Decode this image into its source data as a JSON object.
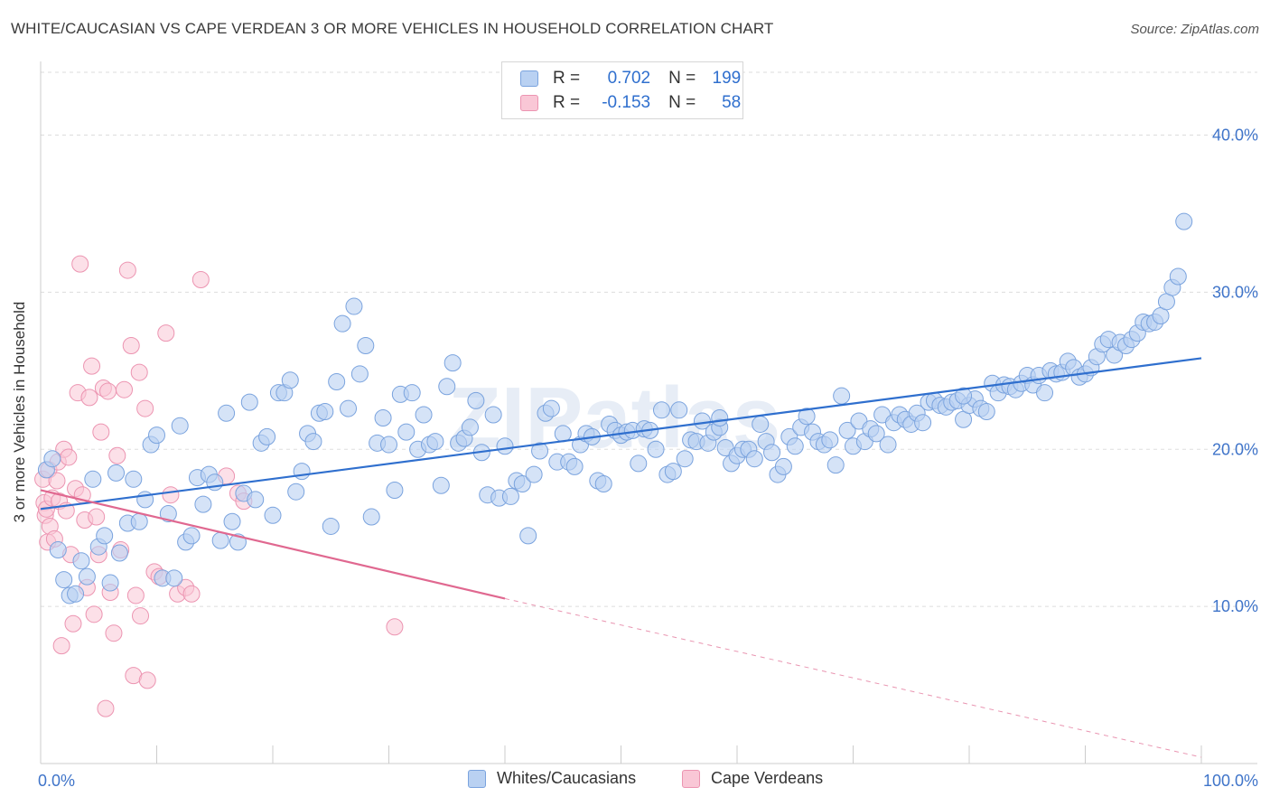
{
  "header": {
    "title": "WHITE/CAUCASIAN VS CAPE VERDEAN 3 OR MORE VEHICLES IN HOUSEHOLD CORRELATION CHART",
    "source": "Source: ZipAtlas.com"
  },
  "legend": {
    "rows": [
      {
        "r_label": "R =",
        "r_value": "0.702",
        "n_label": "N =",
        "n_value": "199"
      },
      {
        "r_label": "R =",
        "r_value": "-0.153",
        "n_label": "N =",
        "n_value": "58"
      }
    ]
  },
  "watermark": "ZIPatlas",
  "colors": {
    "blue_fill": "#b9d1f2",
    "blue_stroke": "#7aa3de",
    "blue_line": "#2f6fce",
    "pink_fill": "#f9c7d6",
    "pink_stroke": "#ec94b1",
    "pink_line": "#e06890",
    "tick_text": "#3f74c9",
    "grid": "#dddddd"
  },
  "chart_data": {
    "type": "scatter",
    "title": "WHITE/CAUCASIAN VS CAPE VERDEAN 3 OR MORE VEHICLES IN HOUSEHOLD CORRELATION CHART",
    "xlabel": "",
    "ylabel": "3 or more Vehicles in Household",
    "xlim": [
      0,
      100
    ],
    "ylim": [
      0,
      44
    ],
    "x_tick_labels": [
      "0.0%",
      "100.0%"
    ],
    "y_ticks": [
      10,
      20,
      30,
      40
    ],
    "y_tick_labels": [
      "10.0%",
      "20.0%",
      "30.0%",
      "40.0%"
    ],
    "grid": true,
    "legend_position": "top-center",
    "series": [
      {
        "name": "Whites/Caucasians",
        "color": "#b9d1f2",
        "r": 0.702,
        "n": 199,
        "trend": {
          "x": [
            0,
            100
          ],
          "y": [
            16.2,
            25.8
          ]
        },
        "points": [
          [
            0.5,
            18.7
          ],
          [
            1,
            19.4
          ],
          [
            1.5,
            13.6
          ],
          [
            2,
            11.7
          ],
          [
            2.5,
            10.7
          ],
          [
            3,
            10.8
          ],
          [
            3.5,
            12.9
          ],
          [
            4,
            11.9
          ],
          [
            4.5,
            18.1
          ],
          [
            5,
            13.8
          ],
          [
            5.5,
            14.5
          ],
          [
            6,
            11.5
          ],
          [
            6.5,
            18.5
          ],
          [
            6.8,
            13.4
          ],
          [
            7.5,
            15.3
          ],
          [
            8,
            18.1
          ],
          [
            8.5,
            15.4
          ],
          [
            9,
            16.8
          ],
          [
            9.5,
            20.3
          ],
          [
            10,
            20.9
          ],
          [
            10.5,
            11.8
          ],
          [
            11,
            15.9
          ],
          [
            11.5,
            11.8
          ],
          [
            12,
            21.5
          ],
          [
            12.5,
            14.1
          ],
          [
            13,
            14.5
          ],
          [
            13.5,
            18.2
          ],
          [
            14,
            16.5
          ],
          [
            14.5,
            18.4
          ],
          [
            15,
            17.9
          ],
          [
            15.5,
            14.2
          ],
          [
            16,
            22.3
          ],
          [
            16.5,
            15.4
          ],
          [
            17,
            14.1
          ],
          [
            17.5,
            17.2
          ],
          [
            18,
            23.0
          ],
          [
            18.5,
            16.8
          ],
          [
            19,
            20.4
          ],
          [
            19.5,
            20.8
          ],
          [
            20,
            15.8
          ],
          [
            20.5,
            23.6
          ],
          [
            21,
            23.6
          ],
          [
            21.5,
            24.4
          ],
          [
            22,
            17.3
          ],
          [
            22.5,
            18.6
          ],
          [
            23,
            21.0
          ],
          [
            23.5,
            20.5
          ],
          [
            24,
            22.3
          ],
          [
            24.5,
            22.4
          ],
          [
            25,
            15.1
          ],
          [
            25.5,
            24.3
          ],
          [
            26,
            28.0
          ],
          [
            26.5,
            22.6
          ],
          [
            27,
            29.1
          ],
          [
            27.5,
            24.8
          ],
          [
            28,
            26.6
          ],
          [
            28.5,
            15.7
          ],
          [
            29,
            20.4
          ],
          [
            29.5,
            22.0
          ],
          [
            30,
            20.3
          ],
          [
            30.5,
            17.4
          ],
          [
            31,
            23.5
          ],
          [
            31.5,
            21.1
          ],
          [
            32,
            23.6
          ],
          [
            32.5,
            20.0
          ],
          [
            33,
            22.2
          ],
          [
            33.5,
            20.3
          ],
          [
            34,
            20.5
          ],
          [
            34.5,
            17.7
          ],
          [
            35,
            24.0
          ],
          [
            35.5,
            25.5
          ],
          [
            36,
            20.4
          ],
          [
            36.5,
            20.7
          ],
          [
            37,
            21.4
          ],
          [
            37.5,
            23.1
          ],
          [
            38,
            19.8
          ],
          [
            38.5,
            17.1
          ],
          [
            39,
            22.2
          ],
          [
            39.5,
            16.9
          ],
          [
            40,
            20.2
          ],
          [
            40.5,
            17.0
          ],
          [
            41,
            18.0
          ],
          [
            41.5,
            17.8
          ],
          [
            42,
            14.5
          ],
          [
            42.5,
            18.4
          ],
          [
            43,
            19.9
          ],
          [
            43.5,
            22.3
          ],
          [
            44,
            22.6
          ],
          [
            44.5,
            19.2
          ],
          [
            45,
            21.0
          ],
          [
            45.5,
            19.2
          ],
          [
            46,
            18.9
          ],
          [
            46.5,
            20.3
          ],
          [
            47,
            21.0
          ],
          [
            47.5,
            20.8
          ],
          [
            48,
            18.0
          ],
          [
            48.5,
            17.8
          ],
          [
            49,
            21.6
          ],
          [
            49.5,
            21.2
          ],
          [
            50,
            20.9
          ],
          [
            50.5,
            21.1
          ],
          [
            51,
            21.2
          ],
          [
            51.5,
            19.1
          ],
          [
            52,
            21.3
          ],
          [
            52.5,
            21.2
          ],
          [
            53,
            20.0
          ],
          [
            53.5,
            22.5
          ],
          [
            54,
            18.4
          ],
          [
            54.5,
            18.6
          ],
          [
            55,
            22.5
          ],
          [
            55.5,
            19.4
          ],
          [
            56,
            20.6
          ],
          [
            56.5,
            20.5
          ],
          [
            57,
            21.8
          ],
          [
            57.5,
            20.4
          ],
          [
            58,
            21.1
          ],
          [
            58.5,
            21.4
          ],
          [
            59,
            20.1
          ],
          [
            59.5,
            19.1
          ],
          [
            60,
            19.6
          ],
          [
            60.5,
            20.0
          ],
          [
            61,
            20.0
          ],
          [
            61.5,
            19.4
          ],
          [
            62,
            21.6
          ],
          [
            62.5,
            20.5
          ],
          [
            63,
            19.8
          ],
          [
            63.5,
            18.4
          ],
          [
            64,
            18.9
          ],
          [
            64.5,
            20.8
          ],
          [
            65,
            20.2
          ],
          [
            65.5,
            21.4
          ],
          [
            66,
            22.1
          ],
          [
            66.5,
            21.1
          ],
          [
            67,
            20.5
          ],
          [
            67.5,
            20.3
          ],
          [
            68,
            20.6
          ],
          [
            68.5,
            19.0
          ],
          [
            69,
            23.4
          ],
          [
            69.5,
            21.2
          ],
          [
            70,
            20.2
          ],
          [
            70.5,
            21.8
          ],
          [
            71,
            20.5
          ],
          [
            71.5,
            21.3
          ],
          [
            72,
            21.0
          ],
          [
            72.5,
            22.2
          ],
          [
            73,
            20.3
          ],
          [
            73.5,
            21.7
          ],
          [
            74,
            22.2
          ],
          [
            74.5,
            21.9
          ],
          [
            75,
            21.6
          ],
          [
            75.5,
            22.3
          ],
          [
            76,
            21.7
          ],
          [
            76.5,
            23.0
          ],
          [
            77,
            23.1
          ],
          [
            77.5,
            22.8
          ],
          [
            78,
            22.7
          ],
          [
            78.5,
            23.0
          ],
          [
            79,
            23.1
          ],
          [
            79.5,
            21.9
          ],
          [
            80,
            22.8
          ],
          [
            80.5,
            23.2
          ],
          [
            81,
            22.6
          ],
          [
            81.5,
            22.4
          ],
          [
            82,
            24.2
          ],
          [
            82.5,
            23.6
          ],
          [
            83,
            24.1
          ],
          [
            83.5,
            24.0
          ],
          [
            84,
            23.8
          ],
          [
            84.5,
            24.2
          ],
          [
            85,
            24.7
          ],
          [
            85.5,
            24.1
          ],
          [
            86,
            24.7
          ],
          [
            86.5,
            23.6
          ],
          [
            87,
            25.0
          ],
          [
            87.5,
            24.8
          ],
          [
            88,
            24.9
          ],
          [
            88.5,
            25.6
          ],
          [
            89,
            25.2
          ],
          [
            89.5,
            24.6
          ],
          [
            90,
            24.8
          ],
          [
            90.5,
            25.2
          ],
          [
            91,
            25.9
          ],
          [
            91.5,
            26.7
          ],
          [
            92,
            27.0
          ],
          [
            92.5,
            26.0
          ],
          [
            93,
            26.8
          ],
          [
            93.5,
            26.6
          ],
          [
            94,
            27.0
          ],
          [
            94.5,
            27.4
          ],
          [
            95,
            28.1
          ],
          [
            95.5,
            28.0
          ],
          [
            96,
            28.1
          ],
          [
            96.5,
            28.5
          ],
          [
            97,
            29.4
          ],
          [
            97.5,
            30.3
          ],
          [
            98,
            31.0
          ],
          [
            98.5,
            34.5
          ],
          [
            79.5,
            23.4
          ],
          [
            58.5,
            22.0
          ]
        ]
      },
      {
        "name": "Cape Verdeans",
        "color": "#f9c7d6",
        "r": -0.153,
        "n": 58,
        "trend": {
          "x": [
            0,
            40
          ],
          "y": [
            17.4,
            10.5
          ]
        },
        "trend_dashed_extension": {
          "x": [
            40,
            100
          ],
          "y": [
            10.5,
            0.4
          ]
        },
        "points": [
          [
            0.2,
            18.1
          ],
          [
            0.3,
            16.6
          ],
          [
            0.4,
            15.8
          ],
          [
            0.5,
            16.2
          ],
          [
            0.6,
            14.1
          ],
          [
            0.7,
            18.7
          ],
          [
            0.8,
            15.1
          ],
          [
            1,
            16.9
          ],
          [
            1.2,
            14.3
          ],
          [
            1.4,
            18.0
          ],
          [
            1.5,
            19.2
          ],
          [
            1.6,
            16.7
          ],
          [
            1.8,
            7.5
          ],
          [
            2,
            20.0
          ],
          [
            2.2,
            16.1
          ],
          [
            2.4,
            19.5
          ],
          [
            2.6,
            13.3
          ],
          [
            2.8,
            8.9
          ],
          [
            3,
            17.5
          ],
          [
            3.2,
            23.6
          ],
          [
            3.4,
            31.8
          ],
          [
            3.6,
            17.1
          ],
          [
            3.8,
            15.5
          ],
          [
            4,
            11.2
          ],
          [
            4.2,
            23.3
          ],
          [
            4.4,
            25.3
          ],
          [
            4.6,
            9.5
          ],
          [
            4.8,
            15.7
          ],
          [
            5,
            13.3
          ],
          [
            5.2,
            21.1
          ],
          [
            5.4,
            23.9
          ],
          [
            5.6,
            3.5
          ],
          [
            5.8,
            23.7
          ],
          [
            6,
            10.9
          ],
          [
            6.3,
            8.3
          ],
          [
            6.6,
            19.6
          ],
          [
            6.9,
            13.6
          ],
          [
            7.2,
            23.8
          ],
          [
            7.5,
            31.4
          ],
          [
            7.8,
            26.6
          ],
          [
            8,
            5.6
          ],
          [
            8.2,
            10.7
          ],
          [
            8.5,
            24.9
          ],
          [
            8.6,
            9.4
          ],
          [
            9,
            22.6
          ],
          [
            9.2,
            5.3
          ],
          [
            9.8,
            12.2
          ],
          [
            10.2,
            11.9
          ],
          [
            10.8,
            27.4
          ],
          [
            11.2,
            17.1
          ],
          [
            11.8,
            10.8
          ],
          [
            12.5,
            11.2
          ],
          [
            13,
            10.8
          ],
          [
            13.8,
            30.8
          ],
          [
            16,
            18.3
          ],
          [
            17,
            17.2
          ],
          [
            17.5,
            16.7
          ],
          [
            30.5,
            8.7
          ]
        ]
      }
    ]
  },
  "bottom_legend": {
    "items": [
      {
        "label": "Whites/Caucasians"
      },
      {
        "label": "Cape Verdeans"
      }
    ]
  }
}
